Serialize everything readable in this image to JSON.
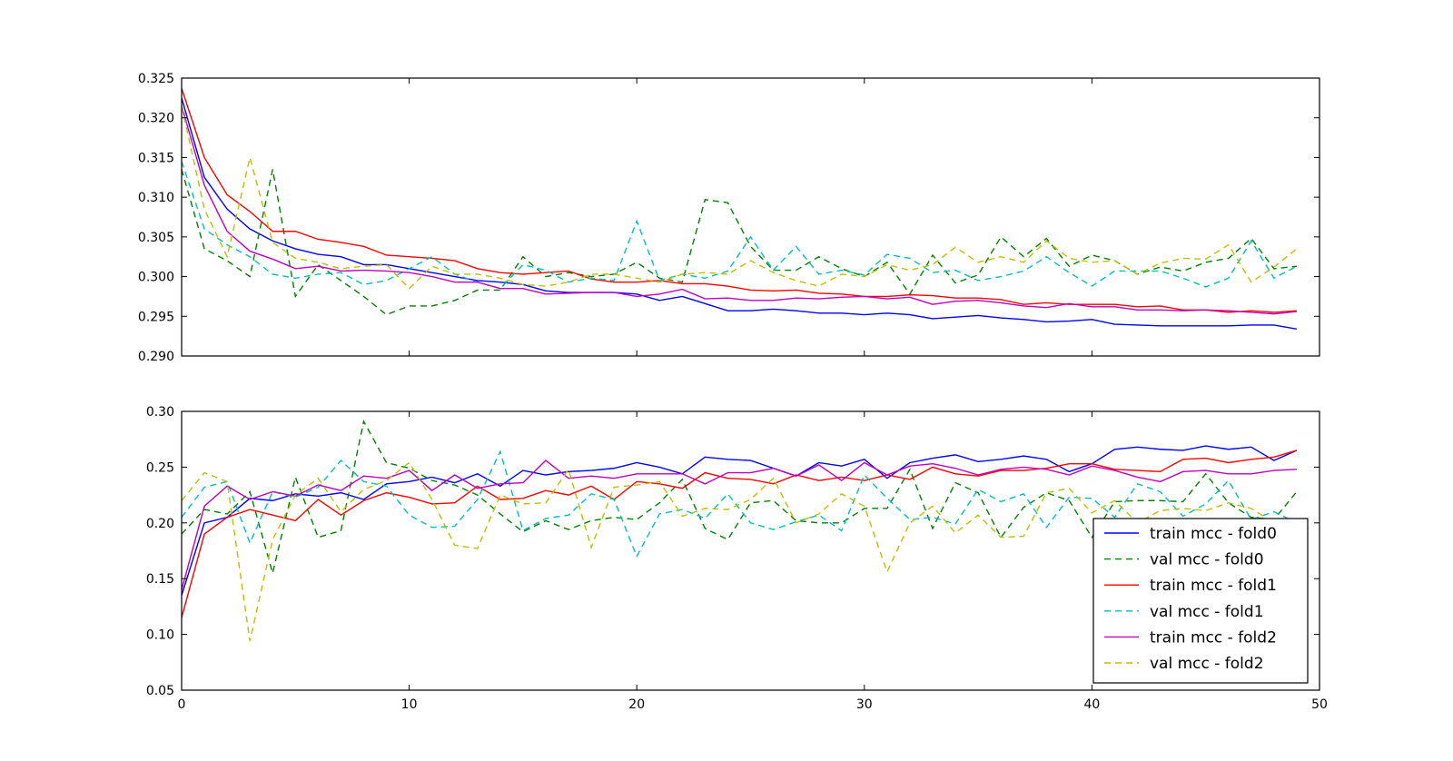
{
  "chart_data": [
    {
      "type": "line",
      "title": "",
      "xlabel": "",
      "ylabel": "",
      "xlim": [
        0,
        50
      ],
      "ylim": [
        0.29,
        0.325
      ],
      "grid": false,
      "xticks_visible": false,
      "yticks": [
        "0.290",
        "0.295",
        "0.300",
        "0.305",
        "0.310",
        "0.315",
        "0.320",
        "0.325"
      ],
      "series": [
        {
          "id": "train_f0",
          "color": "#0000ff",
          "dashed": false,
          "values": [
            0.3225,
            0.3125,
            0.3085,
            0.306,
            0.3045,
            0.3035,
            0.3028,
            0.3025,
            0.3015,
            0.3015,
            0.301,
            0.3005,
            0.3,
            0.2995,
            0.2993,
            0.299,
            0.2982,
            0.298,
            0.298,
            0.298,
            0.2978,
            0.297,
            0.2975,
            0.2966,
            0.2957,
            0.2957,
            0.2959,
            0.2957,
            0.2954,
            0.2954,
            0.2952,
            0.2954,
            0.2952,
            0.2947,
            0.2949,
            0.2951,
            0.2948,
            0.2946,
            0.2943,
            0.2944,
            0.2946,
            0.294,
            0.2939,
            0.2938,
            0.2938,
            0.2938,
            0.2938,
            0.2939,
            0.2939,
            0.2934
          ]
        },
        {
          "id": "val_f0",
          "color": "#008000",
          "dashed": true,
          "values": [
            0.3135,
            0.3035,
            0.302,
            0.3,
            0.3135,
            0.2975,
            0.3015,
            0.2995,
            0.2975,
            0.2952,
            0.2963,
            0.2963,
            0.297,
            0.2983,
            0.2983,
            0.3025,
            0.3,
            0.3005,
            0.3,
            0.3003,
            0.3018,
            0.2998,
            0.2993,
            0.3097,
            0.3093,
            0.3038,
            0.3008,
            0.3008,
            0.3025,
            0.301,
            0.3,
            0.3018,
            0.2978,
            0.3027,
            0.2992,
            0.3002,
            0.305,
            0.3025,
            0.3048,
            0.3013,
            0.3027,
            0.302,
            0.3003,
            0.3012,
            0.3007,
            0.3018,
            0.3023,
            0.3048,
            0.301,
            0.3013
          ]
        },
        {
          "id": "train_f1",
          "color": "#ff0000",
          "dashed": false,
          "values": [
            0.3237,
            0.315,
            0.3103,
            0.3082,
            0.3057,
            0.3057,
            0.3047,
            0.3043,
            0.3038,
            0.3027,
            0.3025,
            0.3023,
            0.302,
            0.301,
            0.3005,
            0.3003,
            0.3005,
            0.3007,
            0.2997,
            0.2993,
            0.2993,
            0.2995,
            0.2991,
            0.2991,
            0.2988,
            0.2983,
            0.2982,
            0.2983,
            0.2979,
            0.2978,
            0.2975,
            0.2975,
            0.2977,
            0.2976,
            0.2973,
            0.2973,
            0.2971,
            0.2965,
            0.2967,
            0.2965,
            0.2965,
            0.2965,
            0.2962,
            0.2963,
            0.2958,
            0.2958,
            0.2955,
            0.2957,
            0.2955,
            0.2957
          ]
        },
        {
          "id": "val_f1",
          "color": "#00bfbf",
          "dashed": true,
          "values": [
            0.3145,
            0.306,
            0.304,
            0.3025,
            0.3003,
            0.2998,
            0.3003,
            0.3005,
            0.299,
            0.2995,
            0.301,
            0.3025,
            0.3003,
            0.2993,
            0.2985,
            0.3015,
            0.3008,
            0.2993,
            0.2998,
            0.2995,
            0.307,
            0.2995,
            0.3003,
            0.2998,
            0.3007,
            0.305,
            0.3008,
            0.3038,
            0.3003,
            0.3008,
            0.3002,
            0.3028,
            0.3023,
            0.3005,
            0.3008,
            0.2995,
            0.3,
            0.3007,
            0.3025,
            0.3005,
            0.2988,
            0.3007,
            0.3007,
            0.3007,
            0.2998,
            0.2987,
            0.2998,
            0.3045,
            0.2998,
            0.3013
          ]
        },
        {
          "id": "train_f2",
          "color": "#bf00bf",
          "dashed": false,
          "values": [
            0.3215,
            0.3115,
            0.3057,
            0.3032,
            0.3022,
            0.301,
            0.3013,
            0.3007,
            0.3008,
            0.3007,
            0.3005,
            0.3,
            0.2993,
            0.2993,
            0.2985,
            0.2985,
            0.2978,
            0.2979,
            0.298,
            0.298,
            0.2975,
            0.2978,
            0.2984,
            0.2972,
            0.2973,
            0.297,
            0.297,
            0.2973,
            0.2972,
            0.2974,
            0.2975,
            0.2972,
            0.2974,
            0.2965,
            0.2969,
            0.297,
            0.2967,
            0.2963,
            0.2961,
            0.2966,
            0.2962,
            0.2962,
            0.2958,
            0.2958,
            0.2957,
            0.2958,
            0.2957,
            0.2955,
            0.2953,
            0.2956
          ]
        },
        {
          "id": "val_f2",
          "color": "#bfbf00",
          "dashed": true,
          "values": [
            0.3215,
            0.3085,
            0.3025,
            0.315,
            0.3043,
            0.3023,
            0.3018,
            0.301,
            0.3013,
            0.3015,
            0.2985,
            0.3013,
            0.3003,
            0.3003,
            0.2998,
            0.299,
            0.2988,
            0.2993,
            0.3003,
            0.3003,
            0.2998,
            0.2993,
            0.3003,
            0.3005,
            0.3003,
            0.302,
            0.3005,
            0.2995,
            0.2988,
            0.3003,
            0.3,
            0.3015,
            0.3008,
            0.3015,
            0.3037,
            0.3018,
            0.3025,
            0.3018,
            0.3045,
            0.3023,
            0.3018,
            0.302,
            0.3003,
            0.3017,
            0.3023,
            0.3022,
            0.304,
            0.2993,
            0.3012,
            0.3035
          ]
        }
      ]
    },
    {
      "type": "line",
      "title": "",
      "xlabel": "",
      "ylabel": "",
      "xlim": [
        0,
        50
      ],
      "ylim": [
        0.05,
        0.3
      ],
      "grid": false,
      "xticks": [
        "0",
        "10",
        "20",
        "30",
        "40",
        "50"
      ],
      "yticks": [
        "0.05",
        "0.10",
        "0.15",
        "0.20",
        "0.25",
        "0.30"
      ],
      "legend_position": "lower-right",
      "series": [
        {
          "id": "train_f0",
          "name": "train mcc - fold0",
          "color": "#0000ff",
          "dashed": false,
          "values": [
            0.135,
            0.2,
            0.205,
            0.222,
            0.22,
            0.226,
            0.224,
            0.227,
            0.221,
            0.235,
            0.237,
            0.241,
            0.236,
            0.244,
            0.233,
            0.247,
            0.243,
            0.246,
            0.247,
            0.249,
            0.254,
            0.25,
            0.244,
            0.259,
            0.257,
            0.256,
            0.249,
            0.242,
            0.254,
            0.251,
            0.257,
            0.24,
            0.254,
            0.258,
            0.261,
            0.255,
            0.257,
            0.26,
            0.257,
            0.246,
            0.253,
            0.266,
            0.268,
            0.266,
            0.265,
            0.269,
            0.266,
            0.268,
            0.256,
            0.265
          ]
        },
        {
          "id": "val_f0",
          "name": "val mcc - fold0",
          "color": "#008000",
          "dashed": true,
          "values": [
            0.19,
            0.212,
            0.208,
            0.228,
            0.155,
            0.241,
            0.187,
            0.193,
            0.291,
            0.254,
            0.249,
            0.238,
            0.234,
            0.225,
            0.208,
            0.192,
            0.202,
            0.194,
            0.202,
            0.205,
            0.203,
            0.218,
            0.239,
            0.195,
            0.185,
            0.218,
            0.22,
            0.202,
            0.2,
            0.2,
            0.213,
            0.213,
            0.248,
            0.195,
            0.236,
            0.227,
            0.187,
            0.214,
            0.227,
            0.22,
            0.187,
            0.219,
            0.22,
            0.22,
            0.219,
            0.244,
            0.218,
            0.205,
            0.203,
            0.228
          ]
        },
        {
          "id": "train_f1",
          "name": "train mcc - fold1",
          "color": "#ff0000",
          "dashed": false,
          "values": [
            0.115,
            0.19,
            0.205,
            0.212,
            0.207,
            0.202,
            0.221,
            0.207,
            0.22,
            0.227,
            0.223,
            0.217,
            0.218,
            0.233,
            0.221,
            0.222,
            0.229,
            0.225,
            0.233,
            0.221,
            0.237,
            0.235,
            0.231,
            0.245,
            0.24,
            0.239,
            0.235,
            0.243,
            0.238,
            0.241,
            0.238,
            0.243,
            0.239,
            0.25,
            0.244,
            0.242,
            0.247,
            0.247,
            0.249,
            0.253,
            0.253,
            0.248,
            0.247,
            0.246,
            0.257,
            0.258,
            0.254,
            0.257,
            0.259,
            0.265
          ]
        },
        {
          "id": "val_f1",
          "name": "val mcc - fold1",
          "color": "#00bfbf",
          "dashed": true,
          "values": [
            0.205,
            0.232,
            0.237,
            0.182,
            0.228,
            0.223,
            0.232,
            0.256,
            0.237,
            0.233,
            0.207,
            0.196,
            0.197,
            0.221,
            0.264,
            0.193,
            0.204,
            0.207,
            0.226,
            0.221,
            0.17,
            0.208,
            0.212,
            0.204,
            0.226,
            0.2,
            0.194,
            0.201,
            0.207,
            0.193,
            0.243,
            0.222,
            0.203,
            0.205,
            0.199,
            0.23,
            0.219,
            0.226,
            0.196,
            0.223,
            0.222,
            0.205,
            0.235,
            0.228,
            0.206,
            0.217,
            0.238,
            0.203,
            0.21,
            0.2
          ]
        },
        {
          "id": "train_f2",
          "name": "train mcc - fold2",
          "color": "#bf00bf",
          "dashed": false,
          "values": [
            0.14,
            0.215,
            0.233,
            0.221,
            0.228,
            0.224,
            0.234,
            0.229,
            0.242,
            0.24,
            0.247,
            0.229,
            0.243,
            0.231,
            0.235,
            0.236,
            0.256,
            0.24,
            0.242,
            0.24,
            0.244,
            0.244,
            0.244,
            0.235,
            0.245,
            0.245,
            0.249,
            0.242,
            0.252,
            0.238,
            0.254,
            0.243,
            0.251,
            0.253,
            0.249,
            0.243,
            0.248,
            0.25,
            0.248,
            0.243,
            0.251,
            0.247,
            0.241,
            0.237,
            0.246,
            0.247,
            0.244,
            0.244,
            0.247,
            0.248
          ]
        },
        {
          "id": "val_f2",
          "name": "val mcc - fold2",
          "color": "#bfbf00",
          "dashed": true,
          "values": [
            0.22,
            0.245,
            0.237,
            0.094,
            0.185,
            0.225,
            0.24,
            0.21,
            0.23,
            0.238,
            0.254,
            0.221,
            0.18,
            0.177,
            0.225,
            0.217,
            0.218,
            0.248,
            0.178,
            0.232,
            0.234,
            0.237,
            0.206,
            0.213,
            0.212,
            0.221,
            0.24,
            0.2,
            0.208,
            0.226,
            0.215,
            0.156,
            0.2,
            0.215,
            0.191,
            0.207,
            0.187,
            0.188,
            0.227,
            0.231,
            0.209,
            0.22,
            0.2,
            0.211,
            0.213,
            0.211,
            0.218,
            0.213,
            0.2,
            0.195
          ]
        }
      ]
    }
  ]
}
